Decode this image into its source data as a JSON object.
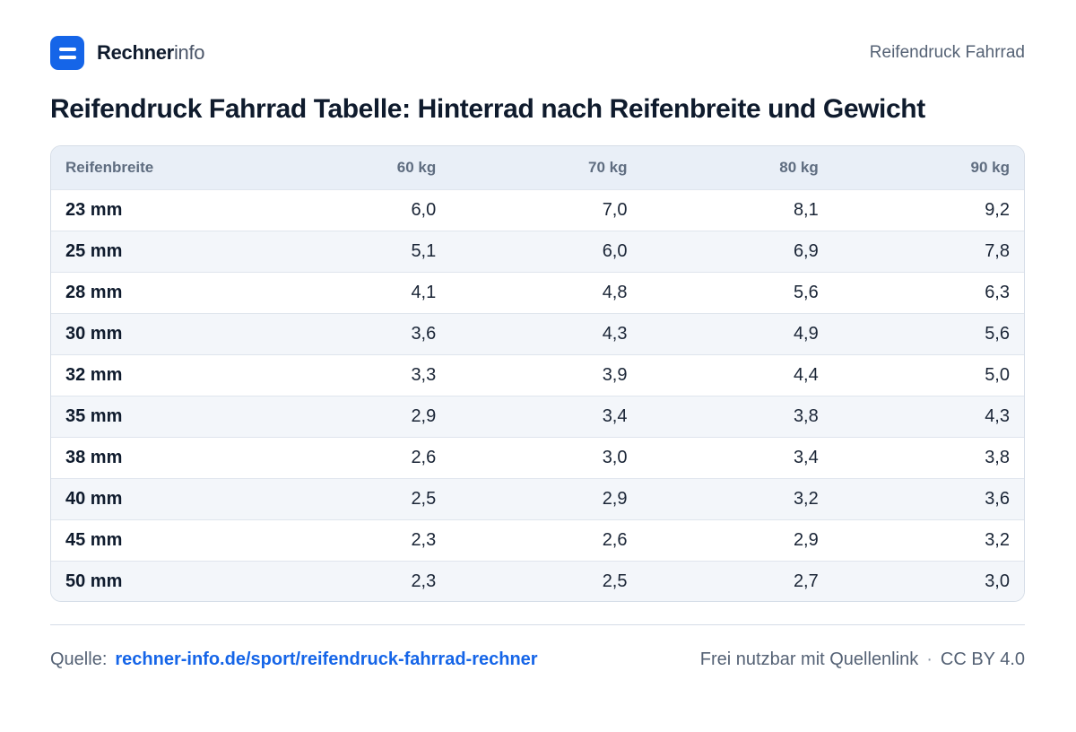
{
  "header": {
    "brand_strong": "Rechner",
    "brand_light": "info",
    "page_label": "Reifendruck Fahrrad"
  },
  "title": "Reifendruck Fahrrad Tabelle: Hinterrad nach Reifenbreite und Gewicht",
  "table": {
    "columns": [
      "Reifenbreite",
      "60 kg",
      "70 kg",
      "80 kg",
      "90 kg"
    ],
    "rows": [
      [
        "23 mm",
        "6,0",
        "7,0",
        "8,1",
        "9,2"
      ],
      [
        "25 mm",
        "5,1",
        "6,0",
        "6,9",
        "7,8"
      ],
      [
        "28 mm",
        "4,1",
        "4,8",
        "5,6",
        "6,3"
      ],
      [
        "30 mm",
        "3,6",
        "4,3",
        "4,9",
        "5,6"
      ],
      [
        "32 mm",
        "3,3",
        "3,9",
        "4,4",
        "5,0"
      ],
      [
        "35 mm",
        "2,9",
        "3,4",
        "3,8",
        "4,3"
      ],
      [
        "38 mm",
        "2,6",
        "3,0",
        "3,4",
        "3,8"
      ],
      [
        "40 mm",
        "2,5",
        "2,9",
        "3,2",
        "3,6"
      ],
      [
        "45 mm",
        "2,3",
        "2,6",
        "2,9",
        "3,2"
      ],
      [
        "50 mm",
        "2,3",
        "2,5",
        "2,7",
        "3,0"
      ]
    ]
  },
  "footer": {
    "source_label": "Quelle:",
    "source_link": "rechner-info.de/sport/reifendruck-fahrrad-rechner",
    "license_text": "Frei nutzbar mit Quellenlink",
    "separator": "·",
    "license_name": "CC BY 4.0"
  },
  "colors": {
    "accent": "#1565e8",
    "header_row": "#e9eff7",
    "zebra_row": "#f3f6fa",
    "text_dark": "#0f1b2d",
    "text_muted": "#556275"
  },
  "icons": {
    "logo": "rechnerinfo-logo-icon"
  }
}
